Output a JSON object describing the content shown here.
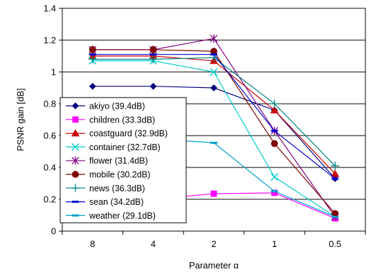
{
  "chart_data": {
    "type": "line",
    "categories": [
      "8",
      "4",
      "2",
      "1",
      "0.5"
    ],
    "xlabel": "Parameter α",
    "ylabel": "PSNR gain [dB]",
    "ylim": [
      0,
      1.4
    ],
    "yticks": [
      "0",
      "0.2",
      "0.4",
      "0.6",
      "0.8",
      "1",
      "1.2",
      "1.4"
    ],
    "grid": "horizontal",
    "legend_position": "bottom-left-inside",
    "series": [
      {
        "name": "akiyo (39.4dB)",
        "values": [
          0.91,
          0.91,
          0.9,
          0.76,
          0.33
        ],
        "color": "#000080",
        "marker": "diamond"
      },
      {
        "name": "children (33.3dB)",
        "values": [
          0.2,
          0.2,
          0.235,
          0.24,
          0.08
        ],
        "color": "#ff00ff",
        "marker": "square"
      },
      {
        "name": "coastguard (32.9dB)",
        "values": [
          1.1,
          1.1,
          1.07,
          0.76,
          0.36
        ],
        "color": "#cc0000",
        "marker": "triangle"
      },
      {
        "name": "container (32.7dB)",
        "values": [
          1.07,
          1.07,
          1.0,
          0.34,
          0.09
        ],
        "color": "#00cccc",
        "marker": "x"
      },
      {
        "name": "flower (31.4dB)",
        "values": [
          1.14,
          1.14,
          1.21,
          0.63,
          0.09
        ],
        "color": "#800080",
        "marker": "star"
      },
      {
        "name": "mobile (30.2dB)",
        "values": [
          1.14,
          1.14,
          1.13,
          0.55,
          0.11
        ],
        "color": "#800000",
        "marker": "circle"
      },
      {
        "name": "news (36.3dB)",
        "values": [
          1.08,
          1.08,
          1.09,
          0.8,
          0.41
        ],
        "color": "#008080",
        "marker": "plus"
      },
      {
        "name": "sean (34.2dB)",
        "values": [
          1.11,
          1.11,
          1.11,
          0.63,
          0.33
        ],
        "color": "#0000cc",
        "marker": "dash"
      },
      {
        "name": "weather (29.1dB)",
        "values": [
          0.58,
          0.58,
          0.555,
          0.25,
          0.09
        ],
        "color": "#00a0cc",
        "marker": "dash"
      }
    ]
  }
}
